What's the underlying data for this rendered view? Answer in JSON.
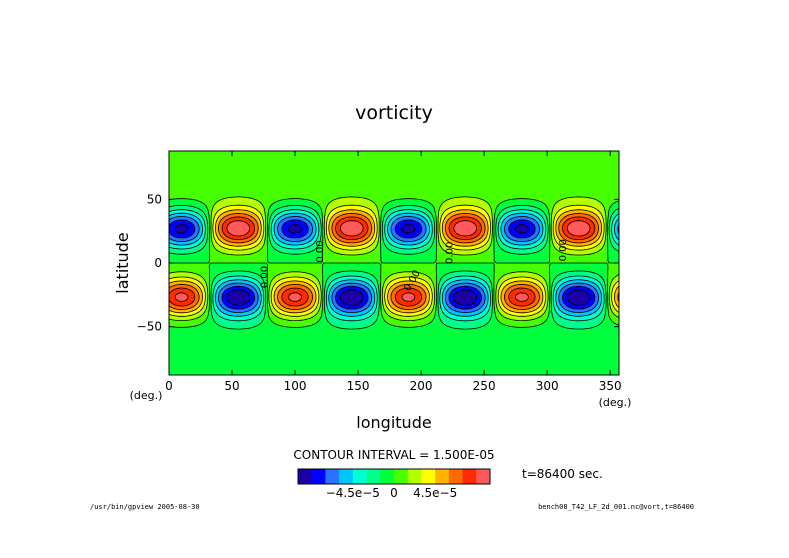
{
  "chart_data": {
    "type": "contour",
    "title": "vorticity",
    "xlabel": "longitude",
    "ylabel": "latitude",
    "x_unit": "(deg.)",
    "y_unit": "(deg.)",
    "xlim": [
      0,
      357
    ],
    "ylim": [
      -88,
      88
    ],
    "x_ticks": [
      0,
      50,
      100,
      150,
      200,
      250,
      300,
      350
    ],
    "y_ticks": [
      -50,
      0,
      50
    ],
    "wave_period_deg": 90,
    "first_north_max_lon": 55,
    "cell_center_lat": 27,
    "peak_value": 0.0001,
    "contour_interval": 1.5e-05,
    "contour_interval_text": "CONTOUR INTERVAL = 1.500E-05",
    "contour_labels": [
      "0.00",
      "0.00",
      "0.00",
      "0.00",
      "0.00"
    ],
    "colorbar": {
      "levels": [
        -0.000105,
        -9e-05,
        -7.5e-05,
        -6e-05,
        -4.5e-05,
        -3e-05,
        -1.5e-05,
        0,
        1.5e-05,
        3e-05,
        4.5e-05,
        6e-05,
        7.5e-05,
        9e-05,
        0.000105
      ],
      "colors": [
        "#1a00a6",
        "#0000ff",
        "#2a72ff",
        "#00c6ff",
        "#00ffd2",
        "#00ff8a",
        "#00ff3c",
        "#46ff00",
        "#b4ff00",
        "#ffff00",
        "#ffb400",
        "#ff6a00",
        "#ff2a00",
        "#ff5a5a"
      ],
      "tick_labels": [
        "−4.5e−5",
        "0",
        "4.5e−5"
      ],
      "tick_values": [
        -4.5e-05,
        0,
        4.5e-05
      ]
    },
    "grid": false
  },
  "annotations": {
    "time": "t=86400 sec.",
    "footer_left": "/usr/bin/gpview  2005-08-30",
    "footer_right": "bench08_T42_LF_2d_001.nc@vort,t=86400"
  }
}
